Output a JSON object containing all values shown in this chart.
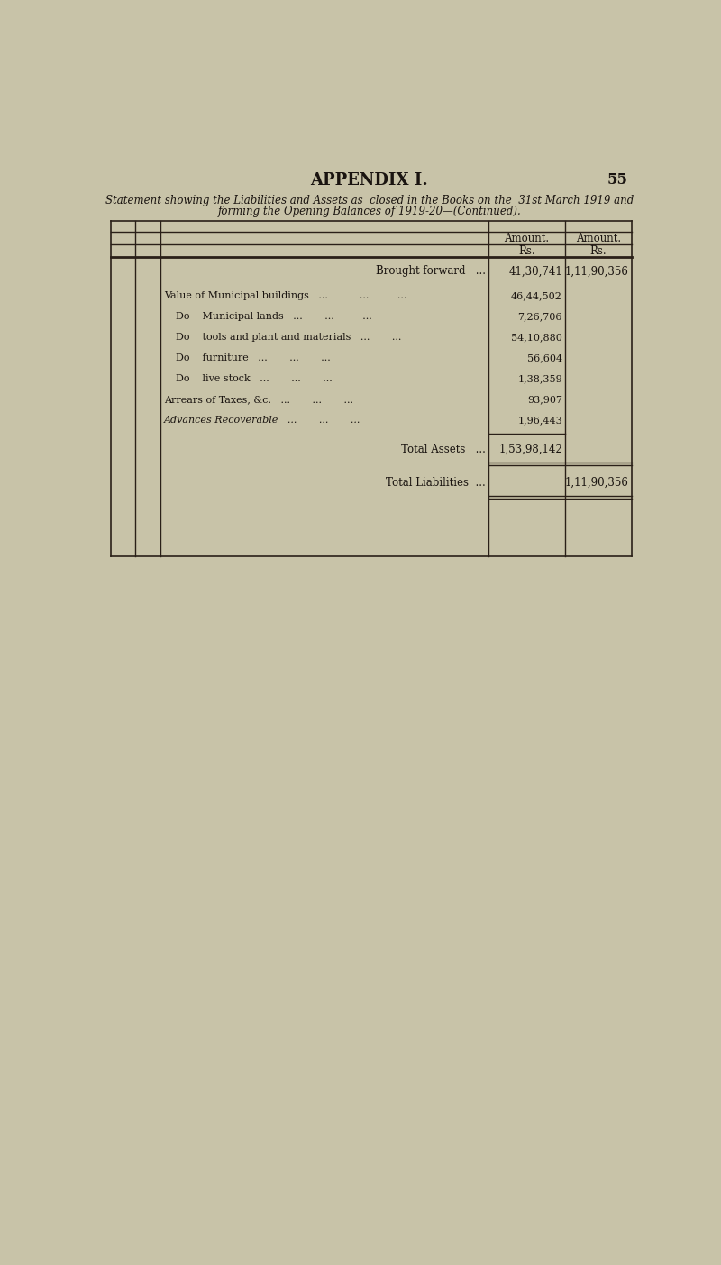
{
  "page_title": "APPENDIX I.",
  "page_number": "55",
  "subtitle_line1": "Statement showing the Liabilities and Assets as  closed in the Books on the  31st March 1919 and",
  "subtitle_line2": "forming the Opening Balances of 1919-20—(Continued).",
  "col_header1": "Amount.",
  "col_header2": "Amount.",
  "col_subheader1": "Rs.",
  "col_subheader2": "Rs.",
  "brought_forward_label": "Brought forward   ...",
  "brought_forward_col1": "41,30,741",
  "brought_forward_col2": "1,11,90,356",
  "rows": [
    {
      "label": "Value of Municipal buildings",
      "dots": "   ...          ...         ...",
      "col1": "46,44,502",
      "style": "normal",
      "indent": 0
    },
    {
      "label": "Do    Municipal lands",
      "dots": "   ...       ...         ...",
      "col1": "7,26,706",
      "style": "normal",
      "indent": 1
    },
    {
      "label": "Do    tools and plant and materials",
      "dots": "   ...       ...",
      "col1": "54,10,880",
      "style": "normal",
      "indent": 1
    },
    {
      "label": "Do    furniture",
      "dots": "   ...       ...       ...",
      "col1": "56,604",
      "style": "normal",
      "indent": 1
    },
    {
      "label": "Do    live stock",
      "dots": "   ...       ...       ...",
      "col1": "1,38,359",
      "style": "normal",
      "indent": 1
    },
    {
      "label": "Arrears of Taxes, &c.",
      "dots": "   ...       ...       ...",
      "col1": "93,907",
      "style": "normal",
      "indent": 0
    },
    {
      "label": "Advances Recoverable",
      "dots": "   ...       ...       ...",
      "col1": "1,96,443",
      "style": "italic",
      "indent": 0
    }
  ],
  "total_assets_label": "Total Assets   ...",
  "total_assets_col1": "1,53,98,142",
  "total_liabilities_label": "Total Liabilities  ...",
  "total_liabilities_col2": "1,11,90,356",
  "bg_color": "#c8c3a8",
  "text_color": "#1a1410",
  "line_color": "#2a2018"
}
